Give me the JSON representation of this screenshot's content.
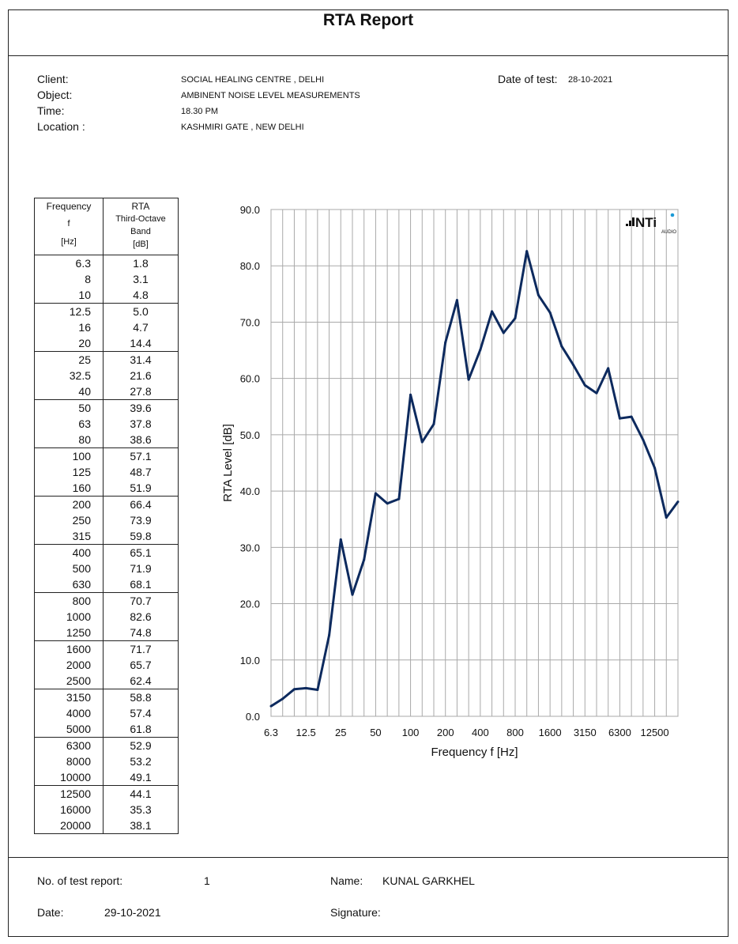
{
  "report": {
    "title": "RTA Report",
    "client_label": "Client:",
    "client_value": "SOCIAL HEALING CENTRE , DELHI",
    "object_label": "Object:",
    "object_value": "AMBINENT NOISE LEVEL MEASUREMENTS",
    "time_label": "Time:",
    "time_value": "18.30 PM",
    "location_label": "Location :",
    "location_value": "KASHMIRI GATE , NEW DELHI",
    "date_of_test_label": "Date of test:",
    "date_of_test_value": "28-10-2021"
  },
  "table": {
    "header_freq": [
      "Frequency",
      "f",
      "[Hz]"
    ],
    "header_rta": [
      "RTA",
      "Third-Octave",
      "Band",
      "[dB]"
    ],
    "rows": [
      {
        "f": "6.3",
        "v": "1.8"
      },
      {
        "f": "8",
        "v": "3.1"
      },
      {
        "f": "10",
        "v": "4.8"
      },
      {
        "f": "12.5",
        "v": "5.0"
      },
      {
        "f": "16",
        "v": "4.7"
      },
      {
        "f": "20",
        "v": "14.4"
      },
      {
        "f": "25",
        "v": "31.4"
      },
      {
        "f": "32.5",
        "v": "21.6"
      },
      {
        "f": "40",
        "v": "27.8"
      },
      {
        "f": "50",
        "v": "39.6"
      },
      {
        "f": "63",
        "v": "37.8"
      },
      {
        "f": "80",
        "v": "38.6"
      },
      {
        "f": "100",
        "v": "57.1"
      },
      {
        "f": "125",
        "v": "48.7"
      },
      {
        "f": "160",
        "v": "51.9"
      },
      {
        "f": "200",
        "v": "66.4"
      },
      {
        "f": "250",
        "v": "73.9"
      },
      {
        "f": "315",
        "v": "59.8"
      },
      {
        "f": "400",
        "v": "65.1"
      },
      {
        "f": "500",
        "v": "71.9"
      },
      {
        "f": "630",
        "v": "68.1"
      },
      {
        "f": "800",
        "v": "70.7"
      },
      {
        "f": "1000",
        "v": "82.6"
      },
      {
        "f": "1250",
        "v": "74.8"
      },
      {
        "f": "1600",
        "v": "71.7"
      },
      {
        "f": "2000",
        "v": "65.7"
      },
      {
        "f": "2500",
        "v": "62.4"
      },
      {
        "f": "3150",
        "v": "58.8"
      },
      {
        "f": "4000",
        "v": "57.4"
      },
      {
        "f": "5000",
        "v": "61.8"
      },
      {
        "f": "6300",
        "v": "52.9"
      },
      {
        "f": "8000",
        "v": "53.2"
      },
      {
        "f": "10000",
        "v": "49.1"
      },
      {
        "f": "12500",
        "v": "44.1"
      },
      {
        "f": "16000",
        "v": "35.3"
      },
      {
        "f": "20000",
        "v": "38.1"
      }
    ]
  },
  "chart_data": {
    "type": "line",
    "x": [
      "6.3",
      "8",
      "10",
      "12.5",
      "16",
      "20",
      "25",
      "32.5",
      "40",
      "50",
      "63",
      "80",
      "100",
      "125",
      "160",
      "200",
      "250",
      "315",
      "400",
      "500",
      "630",
      "800",
      "1000",
      "1250",
      "1600",
      "2000",
      "2500",
      "3150",
      "4000",
      "5000",
      "6300",
      "8000",
      "10000",
      "12500",
      "16000",
      "20000"
    ],
    "series": [
      {
        "values": [
          1.8,
          3.1,
          4.8,
          5.0,
          4.7,
          14.4,
          31.4,
          21.6,
          27.8,
          39.6,
          37.8,
          38.6,
          57.1,
          48.7,
          51.9,
          66.4,
          73.9,
          59.8,
          65.1,
          71.9,
          68.1,
          70.7,
          82.6,
          74.8,
          71.7,
          65.7,
          62.4,
          58.8,
          57.4,
          61.8,
          52.9,
          53.2,
          49.1,
          44.1,
          35.3,
          38.1
        ]
      }
    ],
    "x_tick_labels": [
      "6.3",
      "12.5",
      "25",
      "50",
      "100",
      "200",
      "400",
      "800",
      "1600",
      "3150",
      "6300",
      "12500"
    ],
    "y_ticks": [
      "0.0",
      "10.0",
      "20.0",
      "30.0",
      "40.0",
      "50.0",
      "60.0",
      "70.0",
      "80.0",
      "90.0"
    ],
    "xlabel": "Frequency f [Hz]",
    "ylabel": "RTA Level [dB]",
    "ylim": [
      0,
      90
    ],
    "grid": true,
    "line_color": "#0d2a5e",
    "logo_text": "NTi",
    "logo_sub": "AUDIO"
  },
  "footer": {
    "report_no_label": "No. of test report:",
    "report_no_value": "1",
    "name_label": "Name:",
    "name_value": "KUNAL GARKHEL",
    "date_label": "Date:",
    "date_value": "29-10-2021",
    "signature_label": "Signature:"
  }
}
